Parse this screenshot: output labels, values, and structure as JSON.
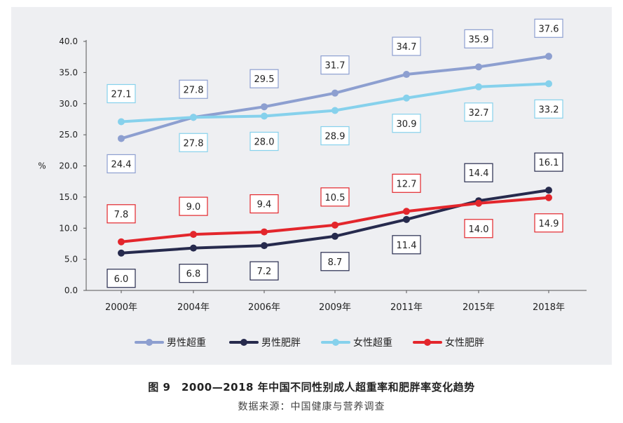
{
  "chart_data": {
    "type": "line",
    "categories": [
      "2000年",
      "2004年",
      "2006年",
      "2009年",
      "2011年",
      "2015年",
      "2018年"
    ],
    "ylabel": "%",
    "ylim": [
      0,
      40
    ],
    "yticks": [
      "0.0",
      "5.0",
      "10.0",
      "15.0",
      "20.0",
      "25.0",
      "30.0",
      "35.0",
      "40.0"
    ],
    "grid": false,
    "legend_position": "bottom",
    "series": [
      {
        "name": "男性超重",
        "color": "#8d9fd0",
        "values": [
          24.4,
          27.8,
          29.5,
          31.7,
          34.7,
          35.9,
          37.6
        ],
        "labels": [
          "24.4",
          "27.8",
          "29.5",
          "31.7",
          "34.7",
          "35.9",
          "37.6"
        ]
      },
      {
        "name": "男性肥胖",
        "color": "#262a4d",
        "values": [
          6.0,
          6.8,
          7.2,
          8.7,
          11.4,
          14.4,
          16.1
        ],
        "labels": [
          "6.0",
          "6.8",
          "7.2",
          "8.7",
          "11.4",
          "14.4",
          "16.1"
        ]
      },
      {
        "name": "女性超重",
        "color": "#86d1ec",
        "values": [
          27.1,
          27.8,
          28.0,
          28.9,
          30.9,
          32.7,
          33.2
        ],
        "labels": [
          "27.1",
          "27.8",
          "28.0",
          "28.9",
          "30.9",
          "32.7",
          "33.2"
        ]
      },
      {
        "name": "女性肥胖",
        "color": "#e3262c",
        "values": [
          7.8,
          9.0,
          9.4,
          10.5,
          12.7,
          14.0,
          14.9
        ],
        "labels": [
          "7.8",
          "9.0",
          "9.4",
          "10.5",
          "12.7",
          "14.0",
          "14.9"
        ]
      }
    ]
  },
  "figure": {
    "title": "图 9　2000—2018 年中国不同性别成人超重率和肥胖率变化趋势",
    "source": "数据来源：中国健康与营养调查"
  }
}
